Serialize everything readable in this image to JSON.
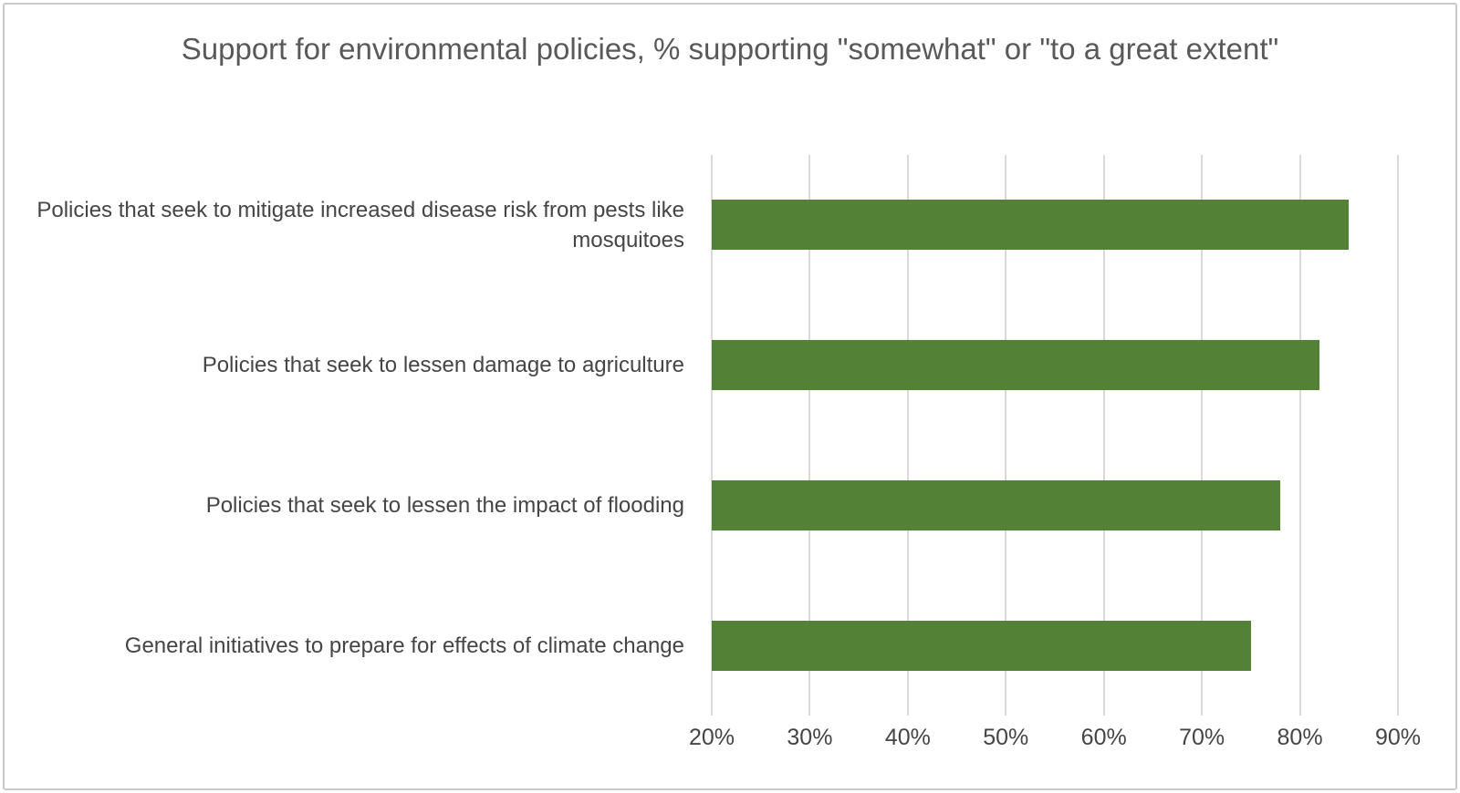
{
  "chart_data": {
    "type": "bar",
    "orientation": "horizontal",
    "title": "Support for environmental policies, % supporting \"somewhat\" or \"to a great extent\"",
    "categories": [
      "Policies that seek to mitigate increased disease risk from pests like mosquitoes",
      "Policies that seek to lessen damage to agriculture",
      "Policies that seek to lessen the impact of flooding",
      "General initiatives to prepare for effects of climate change"
    ],
    "values": [
      85,
      82,
      78,
      75
    ],
    "value_unit": "%",
    "xlabel": "",
    "ylabel": "",
    "xlim": [
      20,
      90
    ],
    "x_tick_values": [
      20,
      30,
      40,
      50,
      60,
      70,
      80,
      90
    ],
    "x_tick_labels": [
      "20%",
      "30%",
      "40%",
      "50%",
      "60%",
      "70%",
      "80%",
      "90%"
    ],
    "grid": true,
    "legend": "none",
    "bar_color": "#538135",
    "gridline_color": "#d9d9d9",
    "title_color": "#595959",
    "label_color": "#454545"
  }
}
